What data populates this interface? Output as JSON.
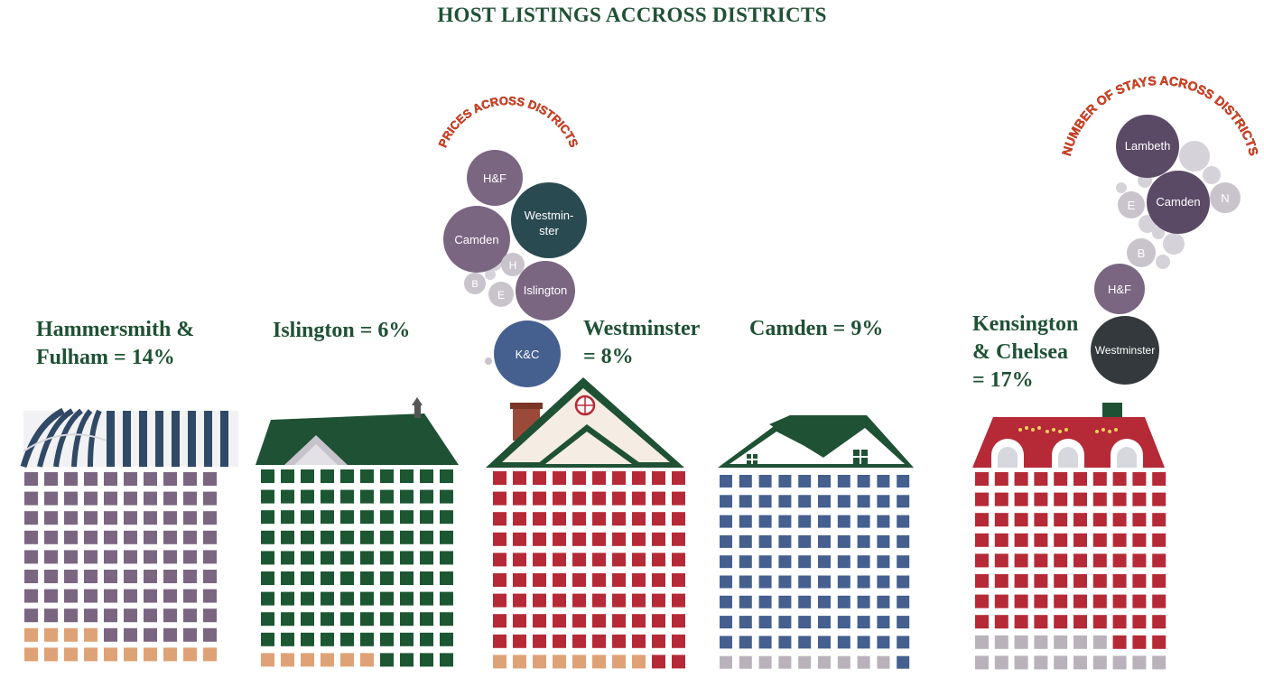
{
  "title": "HOST LISTINGS ACCROSS DISTRICTS",
  "colors": {
    "title": "#1f5134",
    "bubble_text": "#ffffff",
    "arc_title": "#e5431f"
  },
  "chart_data": [
    {
      "type": "pictogram",
      "title": "HOST LISTINGS ACCROSS DISTRICTS",
      "unit_grid": "10 columns x 10 rows per building",
      "series": [
        {
          "name": "Hammersmith & Fulham",
          "label_lines": [
            "Hammersmith &",
            "Fulham = 14%"
          ],
          "value": 14,
          "color": "#7b6682",
          "highlight_color": "#dfa276",
          "roof": "striped-dome"
        },
        {
          "name": "Islington",
          "label_lines": [
            "Islington = 6%"
          ],
          "value": 6,
          "color": "#1c5632",
          "highlight_color": "#dfa276",
          "roof": "green-shingle"
        },
        {
          "name": "Westminster",
          "label_lines": [
            "Westminster",
            "= 8%"
          ],
          "value": 8,
          "color": "#b52a36",
          "highlight_color": "#dfa276",
          "roof": "gable-house"
        },
        {
          "name": "Camden",
          "label_lines": [
            "Camden = 9%"
          ],
          "value": 9,
          "color": "#455f8f",
          "highlight_color": "#b9b2bb",
          "roof": "green-gable"
        },
        {
          "name": "Kensington & Chelsea",
          "label_lines": [
            "Kensington",
            "& Chelsea",
            "= 17%"
          ],
          "value": 17,
          "color": "#b52a36",
          "highlight_color": "#b9b2bb",
          "roof": "red-dormer"
        }
      ]
    },
    {
      "type": "bubble",
      "title": "PRICES ACROSS DISTRICTS",
      "bubbles": [
        {
          "label": "H&F",
          "size": 3
        },
        {
          "label": "Westmin-ster",
          "size": 5
        },
        {
          "label": "Camden",
          "size": 4
        },
        {
          "label": "H",
          "size": 1
        },
        {
          "label": "B",
          "size": 1
        },
        {
          "label": "E",
          "size": 1
        },
        {
          "label": "Islington",
          "size": 4
        },
        {
          "label": "K&C",
          "size": 4
        }
      ]
    },
    {
      "type": "bubble",
      "title": "NUMBER OF STAYS ACROSS DISTRICTS",
      "bubbles": [
        {
          "label": "Lambeth",
          "size": 5
        },
        {
          "label": "Camden",
          "size": 5
        },
        {
          "label": "N",
          "size": 2
        },
        {
          "label": "E",
          "size": 1
        },
        {
          "label": "B",
          "size": 1
        },
        {
          "label": "H&F",
          "size": 3
        },
        {
          "label": "Westminster",
          "size": 5
        }
      ]
    }
  ]
}
